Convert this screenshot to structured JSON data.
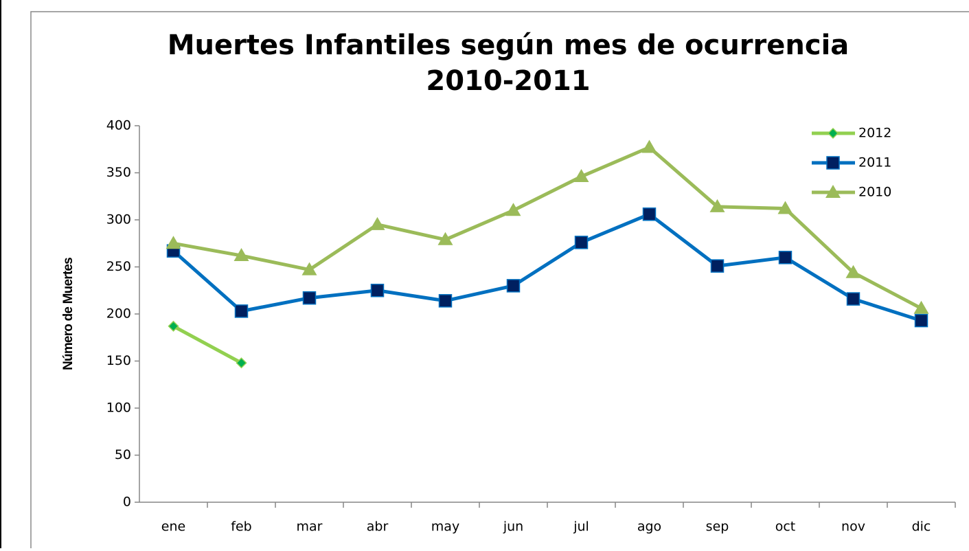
{
  "chart_data": {
    "type": "line",
    "title": [
      "Muertes Infantiles según mes de ocurrencia",
      "2010-2011"
    ],
    "y_label": "Número de Muertes",
    "categories": [
      "ene",
      "feb",
      "mar",
      "abr",
      "may",
      "jun",
      "jul",
      "ago",
      "sep",
      "oct",
      "nov",
      "dic"
    ],
    "series": [
      {
        "name": "2012",
        "color": "#92d050",
        "marker_color": "#00b050",
        "marker": "diamond",
        "values": [
          187,
          148,
          null,
          null,
          null,
          null,
          null,
          null,
          null,
          null,
          null,
          null
        ]
      },
      {
        "name": "2011",
        "color": "#0070c0",
        "marker_color": "#002060",
        "marker": "square",
        "values": [
          267,
          203,
          217,
          225,
          214,
          230,
          276,
          306,
          251,
          260,
          216,
          193
        ]
      },
      {
        "name": "2010",
        "color": "#9bbb59",
        "marker_color": "#9bbb59",
        "marker": "triangle",
        "values": [
          275,
          262,
          247,
          295,
          279,
          310,
          346,
          377,
          314,
          312,
          244,
          206
        ]
      }
    ],
    "ylim": [
      0,
      400
    ],
    "yticks": [
      0,
      50,
      100,
      150,
      200,
      250,
      300,
      350,
      400
    ],
    "grid": false,
    "legend": "top-right"
  }
}
